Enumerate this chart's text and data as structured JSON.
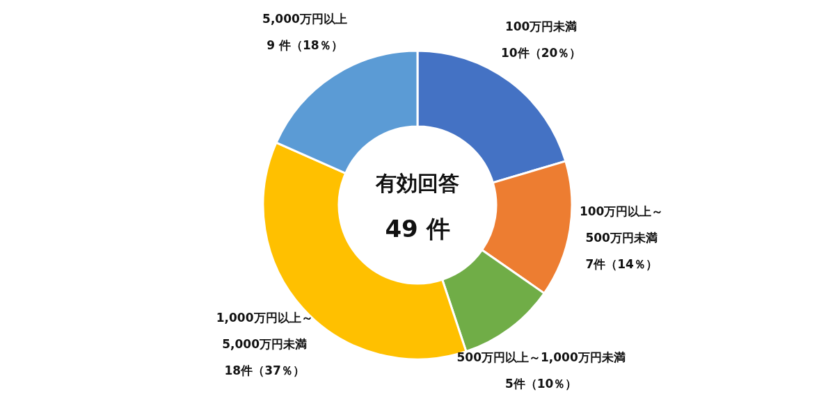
{
  "chart_data": {
    "type": "donut",
    "categories": [
      "100万円未満",
      "100万円以上～\n500万円未満",
      "500万円以上～1,000万円未満",
      "1,000万円以上～\n5,000万円未満",
      "5,000万円以上"
    ],
    "values": [
      10,
      7,
      5,
      18,
      9
    ],
    "value_labels": [
      "10件（20％）",
      "7件（14％）",
      "5件（10％）",
      "18件（37％）",
      "9 件（18％）"
    ],
    "colors": [
      "#4472c4",
      "#ed7d31",
      "#70ad47",
      "#ffc000",
      "#5b9bd5"
    ],
    "annotations": [
      "有効回答",
      "49 件"
    ],
    "legend": false
  }
}
